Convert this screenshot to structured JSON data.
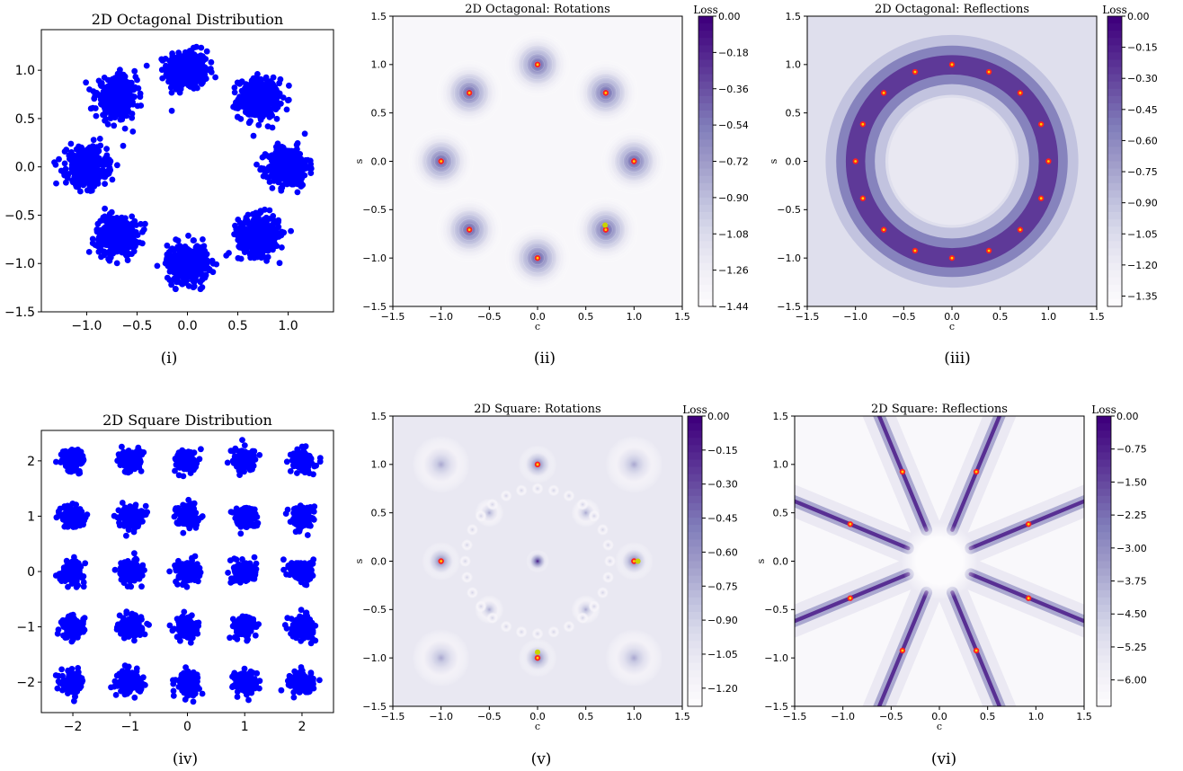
{
  "panels": [
    {
      "kind": "scatter",
      "title": "2D Octagonal Distribution",
      "caption": "(i)",
      "chart_data": {
        "type": "scatter",
        "title": "2D Octagonal Distribution",
        "xlim": [
          -1.45,
          1.45
        ],
        "ylim": [
          -1.5,
          1.42
        ],
        "xticks": [
          -1.0,
          -0.5,
          0.0,
          0.5,
          1.0
        ],
        "xtick_labels": [
          "−1.0",
          "−0.5",
          "0.0",
          "0.5",
          "1.0"
        ],
        "yticks": [
          -1.5,
          -1.0,
          -0.5,
          0.0,
          0.5,
          1.0
        ],
        "ytick_labels": [
          "−1.5",
          "−1.0",
          "−0.5",
          "0.0",
          "0.5",
          "1.0"
        ],
        "color": "#0000ff",
        "cluster_centers": [
          [
            0,
            1
          ],
          [
            0.707,
            0.707
          ],
          [
            1,
            0
          ],
          [
            0.707,
            -0.707
          ],
          [
            0,
            -1
          ],
          [
            -0.707,
            -0.707
          ],
          [
            -1,
            0
          ],
          [
            -0.707,
            0.707
          ]
        ],
        "cluster_spread": 0.1
      }
    },
    {
      "kind": "contour",
      "title": "2D Octagonal: Rotations",
      "caption": "(ii)",
      "chart_data": {
        "type": "heatmap",
        "title": "2D Octagonal: Rotations",
        "xlabel": "c",
        "ylabel": "s",
        "xlim": [
          -1.5,
          1.5
        ],
        "ylim": [
          -1.5,
          1.5
        ],
        "ticks": [
          -1.5,
          -1.0,
          -0.5,
          0.0,
          0.5,
          1.0,
          1.5
        ],
        "tick_labels": [
          "−1.5",
          "−1.0",
          "−0.5",
          "0.0",
          "0.5",
          "1.0",
          "1.5"
        ],
        "colorbar_label": "Loss",
        "colorbar_ticks": [
          "0.00",
          "−0.18",
          "−0.36",
          "−0.54",
          "−0.72",
          "−0.90",
          "−1.08",
          "−1.26",
          "−1.44"
        ],
        "colorbar_range": [
          -1.44,
          0.0
        ],
        "pattern": "wells at 8 rotation angles on unit circle",
        "minima": [
          [
            1,
            0
          ],
          [
            0.707,
            0.707
          ],
          [
            0,
            1
          ],
          [
            -0.707,
            0.707
          ],
          [
            -1,
            0
          ],
          [
            -0.707,
            -0.707
          ],
          [
            0,
            -1
          ],
          [
            0.707,
            -0.707
          ]
        ],
        "learned_points": [
          [
            0.7,
            -0.66
          ]
        ]
      }
    },
    {
      "kind": "contour",
      "title": "2D Octagonal: Reflections",
      "caption": "(iii)",
      "chart_data": {
        "type": "heatmap",
        "title": "2D Octagonal: Reflections",
        "xlabel": "c",
        "ylabel": "s",
        "xlim": [
          -1.5,
          1.5
        ],
        "ylim": [
          -1.5,
          1.5
        ],
        "ticks": [
          -1.5,
          -1.0,
          -0.5,
          0.0,
          0.5,
          1.0,
          1.5
        ],
        "tick_labels": [
          "−1.5",
          "−1.0",
          "−0.5",
          "0.0",
          "0.5",
          "1.0",
          "1.5"
        ],
        "colorbar_label": "Loss",
        "colorbar_ticks": [
          "0.00",
          "−0.15",
          "−0.30",
          "−0.45",
          "−0.60",
          "−0.75",
          "−0.90",
          "−1.05",
          "−1.20",
          "−1.35"
        ],
        "colorbar_range": [
          -1.4,
          0.0
        ],
        "pattern": "dark ring of radius 1 with 16 minima",
        "minima_count": 16
      }
    },
    {
      "kind": "scatter",
      "title": "2D Square Distribution",
      "caption": "(iv)",
      "chart_data": {
        "type": "scatter",
        "title": "2D Square Distribution",
        "xlim": [
          -2.55,
          2.55
        ],
        "ylim": [
          -2.55,
          2.55
        ],
        "xticks": [
          -2,
          -1,
          0,
          1,
          2
        ],
        "xtick_labels": [
          "−2",
          "−1",
          "0",
          "1",
          "2"
        ],
        "yticks": [
          -2,
          -1,
          0,
          1,
          2
        ],
        "ytick_labels": [
          "−2",
          "−1",
          "0",
          "1",
          "2"
        ],
        "color": "#0000ff",
        "grid_centers": [
          -2,
          -1,
          0,
          1,
          2
        ],
        "cluster_spread": 0.1
      }
    },
    {
      "kind": "contour",
      "title": "2D Square: Rotations",
      "caption": "(v)",
      "chart_data": {
        "type": "heatmap",
        "title": "2D Square: Rotations",
        "xlabel": "c",
        "ylabel": "s",
        "xlim": [
          -1.5,
          1.5
        ],
        "ylim": [
          -1.5,
          1.5
        ],
        "ticks": [
          -1.5,
          -1.0,
          -0.5,
          0.0,
          0.5,
          1.0,
          1.5
        ],
        "tick_labels": [
          "−1.5",
          "−1.0",
          "−0.5",
          "0.0",
          "0.5",
          "1.0",
          "1.5"
        ],
        "colorbar_label": "Loss",
        "colorbar_ticks": [
          "0.00",
          "−0.15",
          "−0.30",
          "−0.45",
          "−0.60",
          "−0.75",
          "−0.90",
          "−1.05",
          "−1.20"
        ],
        "colorbar_range": [
          -1.28,
          0.0
        ],
        "pattern": "wells at 4 rotation angles plus faint secondary wells",
        "minima": [
          [
            1,
            0
          ],
          [
            0,
            1
          ],
          [
            -1,
            0
          ],
          [
            0,
            -1
          ]
        ],
        "secondary_wells": [
          [
            1,
            1
          ],
          [
            -1,
            1
          ],
          [
            1,
            -1
          ],
          [
            -1,
            -1
          ],
          [
            0.5,
            0.5
          ],
          [
            -0.5,
            0.5
          ],
          [
            0.5,
            -0.5
          ],
          [
            -0.5,
            -0.5
          ]
        ],
        "learned_points": [
          [
            0.0,
            -0.94
          ],
          [
            1.04,
            0.0
          ]
        ]
      }
    },
    {
      "kind": "contour",
      "title": "2D Square: Reflections",
      "caption": "(vi)",
      "chart_data": {
        "type": "heatmap",
        "title": "2D Square: Reflections",
        "xlabel": "c",
        "ylabel": "s",
        "xlim": [
          -1.5,
          1.5
        ],
        "ylim": [
          -1.5,
          1.5
        ],
        "ticks": [
          -1.5,
          -1.0,
          -0.5,
          0.0,
          0.5,
          1.0,
          1.5
        ],
        "tick_labels": [
          "−1.5",
          "−1.0",
          "−0.5",
          "0.0",
          "0.5",
          "1.0",
          "1.5"
        ],
        "colorbar_label": "Loss",
        "colorbar_ticks": [
          "0.00",
          "−0.75",
          "−1.50",
          "−2.25",
          "−3.00",
          "−3.75",
          "−4.50",
          "−5.25",
          "−6.00"
        ],
        "colorbar_range": [
          -6.6,
          0.0
        ],
        "pattern": "8 dark rays through origin with minima on unit circle",
        "minima_angles_deg": [
          22.5,
          67.5,
          112.5,
          157.5,
          202.5,
          247.5,
          292.5,
          337.5
        ]
      }
    }
  ]
}
